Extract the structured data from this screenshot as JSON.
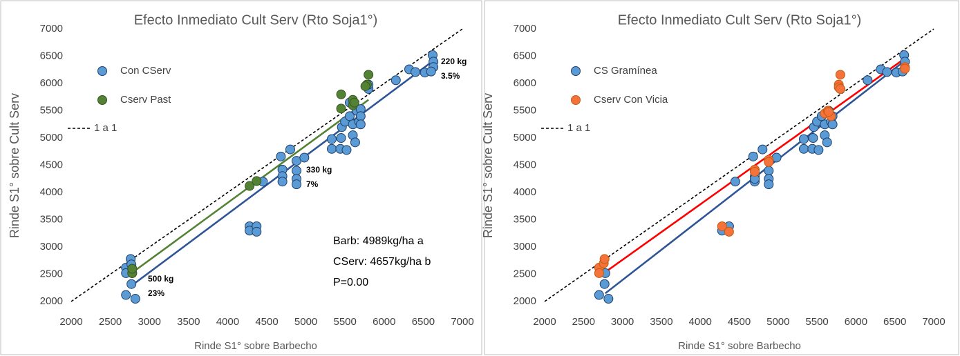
{
  "chart_data": [
    {
      "type": "scatter",
      "title": "Efecto Inmediato Cult Serv (Rto Soja1°)",
      "x_label": "Rinde S1° sobre Barbecho",
      "y_label": "Rinde S1° sobre Cult Serv",
      "xlim": [
        2000,
        7000
      ],
      "ylim": [
        2000,
        7000
      ],
      "xticks": [
        2000,
        2500,
        3000,
        3500,
        4000,
        4500,
        5000,
        5500,
        6000,
        6500,
        7000
      ],
      "yticks": [
        2000,
        2500,
        3000,
        3500,
        4000,
        4500,
        5000,
        5500,
        6000,
        6500,
        7000
      ],
      "series": [
        {
          "name": "Con CServ",
          "color": "#5b9bd5",
          "x": [
            2700,
            2700,
            2760,
            2770,
            2780,
            2780,
            2770,
            2700,
            2820,
            4280,
            4280,
            4370,
            4370,
            4450,
            4680,
            4700,
            4700,
            4700,
            4800,
            4880,
            4880,
            4880,
            4880,
            4980,
            5330,
            5330,
            5440,
            5450,
            5460,
            5500,
            5520,
            5560,
            5600,
            5600,
            5630,
            5650,
            5680,
            5700,
            5700,
            5700,
            5800,
            5800,
            6150,
            6320,
            6400,
            6520,
            6620,
            6630,
            6630,
            6600,
            5560
          ],
          "y": [
            2620,
            2520,
            2780,
            2680,
            2600,
            2520,
            2320,
            2120,
            2050,
            3380,
            3300,
            3380,
            3280,
            4200,
            4660,
            4420,
            4300,
            4200,
            4790,
            4580,
            4400,
            4250,
            4150,
            4640,
            4980,
            4800,
            4800,
            5000,
            5200,
            5300,
            4780,
            5400,
            5250,
            5050,
            4920,
            5500,
            5300,
            5530,
            5400,
            5250,
            5900,
            5980,
            6060,
            6260,
            6210,
            6200,
            6520,
            6400,
            6300,
            6220,
            5650
          ]
        },
        {
          "name": "Cserv Past",
          "color": "#548235",
          "x": [
            2780,
            2780,
            4280,
            4370,
            5450,
            5450,
            5600,
            5600,
            5620,
            5780,
            5800,
            5760
          ],
          "y": [
            2520,
            2600,
            4120,
            4210,
            5800,
            5540,
            5600,
            5700,
            5650,
            5980,
            6160,
            5950
          ]
        }
      ],
      "trend_lines": [
        {
          "color": "#2f5597",
          "x": [
            2780,
            6640
          ],
          "y": [
            2300,
            6430
          ]
        },
        {
          "color": "#548235",
          "x": [
            2780,
            5800
          ],
          "y": [
            2530,
            5700
          ]
        }
      ],
      "reference_line": {
        "name": "1 a 1",
        "x": [
          2000,
          7000
        ],
        "y": [
          2000,
          7000
        ]
      },
      "annotations": [
        "220 kg",
        "3.5%",
        "330 kg",
        "7%",
        "500 kg",
        "23%",
        "Barb: 4989kg/ha  a",
        "CServ: 4657kg/ha  b",
        "P=0.00"
      ]
    },
    {
      "type": "scatter",
      "title": "Efecto Inmediato Cult Serv (Rto Soja1°)",
      "x_label": "Rinde S1° sobre Barbecho",
      "y_label": "Rinde S1° sobre Cult Serv",
      "xlim": [
        2000,
        7000
      ],
      "ylim": [
        2000,
        7000
      ],
      "xticks": [
        2000,
        2500,
        3000,
        3500,
        4000,
        4500,
        5000,
        5500,
        6000,
        6500,
        7000
      ],
      "yticks": [
        2000,
        2500,
        3000,
        3500,
        4000,
        4500,
        5000,
        5500,
        6000,
        6500,
        7000
      ],
      "series": [
        {
          "name": "CS Gramínea",
          "color": "#5b9bd5",
          "x": [
            2770,
            2780,
            2700,
            2820,
            4280,
            4370,
            4450,
            4680,
            4700,
            4700,
            4700,
            4800,
            4880,
            4880,
            4880,
            4980,
            5330,
            5330,
            5440,
            5450,
            5460,
            5500,
            5520,
            5560,
            5600,
            5600,
            5630,
            5650,
            5680,
            5700,
            5700,
            5800,
            6150,
            6320,
            6400,
            6520,
            6620,
            6630,
            6600
          ],
          "y": [
            2320,
            2520,
            2120,
            2050,
            3300,
            3380,
            4200,
            4660,
            4300,
            4200,
            4250,
            4790,
            4400,
            4250,
            4150,
            4640,
            4980,
            4800,
            4800,
            5000,
            5200,
            5300,
            4780,
            5400,
            5250,
            5050,
            4920,
            5500,
            5300,
            5400,
            5250,
            5900,
            6060,
            6260,
            6210,
            6200,
            6520,
            6400,
            6220
          ]
        },
        {
          "name": "Cserv Con Vicia",
          "color": "#f4733a",
          "x": [
            2700,
            2700,
            2760,
            2770,
            4280,
            4370,
            4700,
            4700,
            4880,
            4880,
            5600,
            5640,
            5680,
            5650,
            5780,
            5780,
            5800,
            5800,
            6630,
            6630
          ],
          "y": [
            2620,
            2520,
            2700,
            2780,
            3380,
            3280,
            4420,
            4380,
            4600,
            4560,
            5450,
            5500,
            5400,
            5480,
            5980,
            5930,
            6160,
            5900,
            6300,
            6270
          ]
        }
      ],
      "trend_lines": [
        {
          "color": "#ff0000",
          "x": [
            2780,
            6640
          ],
          "y": [
            2540,
            6470
          ]
        },
        {
          "color": "#2f5597",
          "x": [
            2780,
            6640
          ],
          "y": [
            2150,
            6430
          ]
        }
      ],
      "reference_line": {
        "name": "1 a 1",
        "x": [
          2000,
          7000
        ],
        "y": [
          2000,
          7000
        ]
      }
    }
  ]
}
